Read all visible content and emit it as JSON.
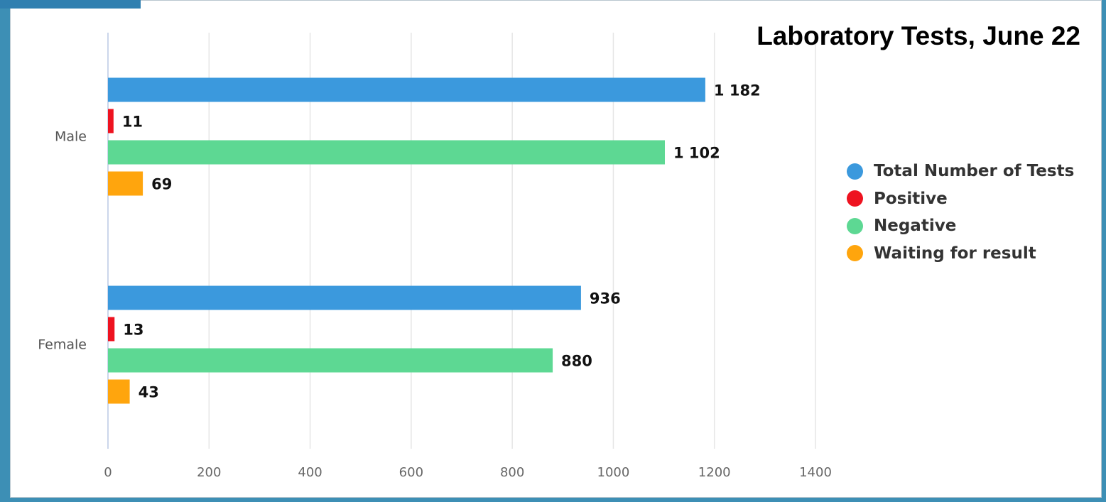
{
  "chart_data": {
    "type": "bar",
    "orientation": "horizontal",
    "title": "Laboratory Tests, June 22",
    "xlabel": "",
    "ylabel": "",
    "categories": [
      "Male",
      "Female"
    ],
    "series": [
      {
        "name": "Total Number of Tests",
        "color": "#3b99dd",
        "values": [
          1182,
          936
        ],
        "labels": [
          "1 182",
          "936"
        ]
      },
      {
        "name": "Positive",
        "color": "#ee1320",
        "values": [
          11,
          13
        ],
        "labels": [
          "11",
          "13"
        ]
      },
      {
        "name": "Negative",
        "color": "#5dd893",
        "values": [
          1102,
          880
        ],
        "labels": [
          "1 102",
          "880"
        ]
      },
      {
        "name": "Waiting for result",
        "color": "#ffa50d",
        "values": [
          69,
          43
        ],
        "labels": [
          "69",
          "43"
        ]
      }
    ],
    "xlim": [
      0,
      1400
    ],
    "xticks": [
      0,
      200,
      400,
      600,
      800,
      1000,
      1200,
      1400
    ],
    "grid": "vertical",
    "legend_position": "right"
  }
}
